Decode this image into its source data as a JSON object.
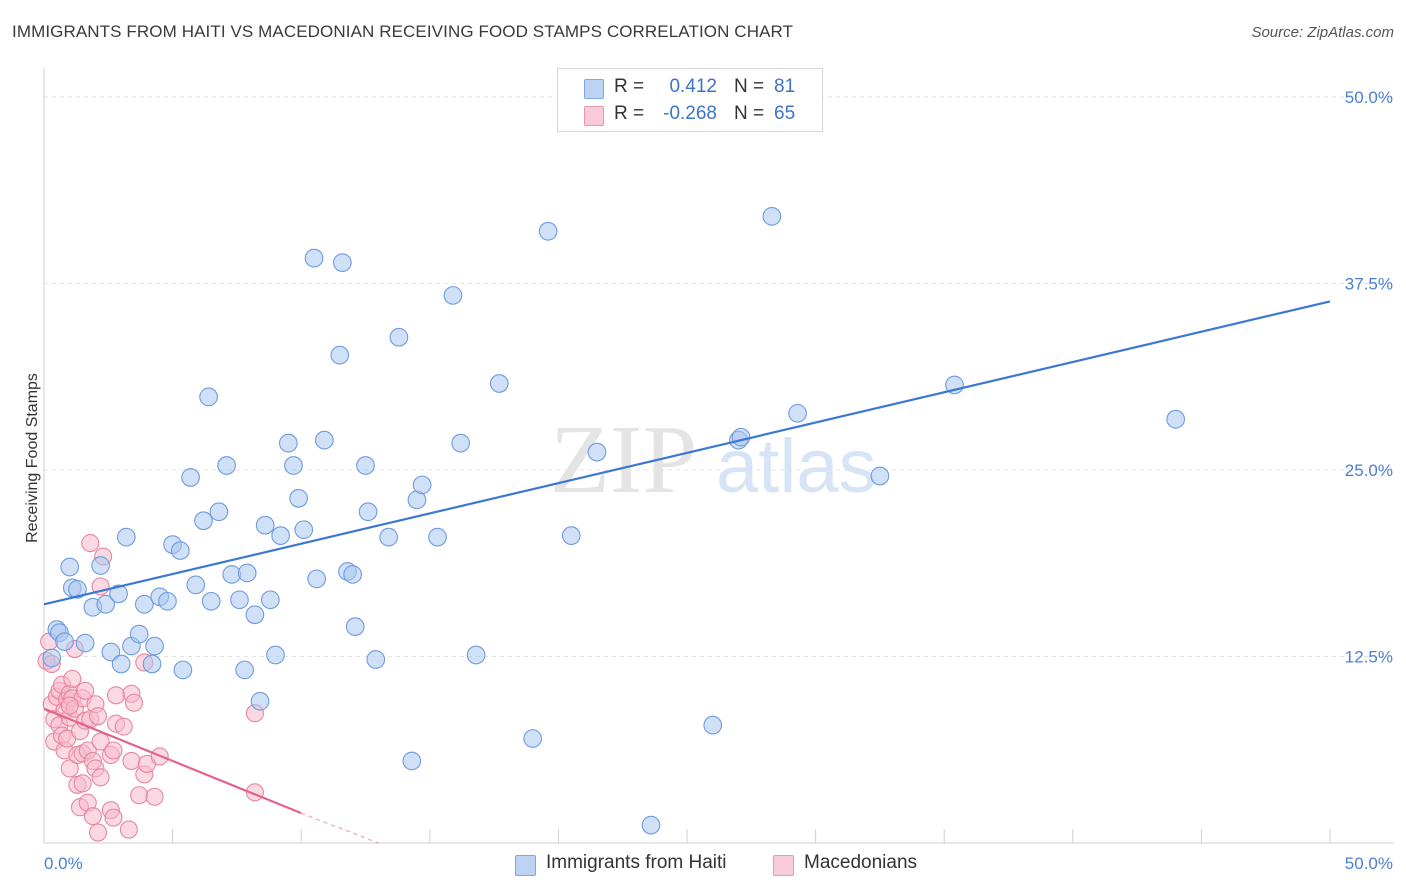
{
  "title": "IMMIGRANTS FROM HAITI VS MACEDONIAN RECEIVING FOOD STAMPS CORRELATION CHART",
  "source": "Source: ZipAtlas.com",
  "watermark": {
    "zip": "ZIP",
    "atlas": "atlas"
  },
  "legend": {
    "rows": [
      {
        "r_label": "R =",
        "r_value": "0.412",
        "n_label": "N =",
        "n_value": "81",
        "color": "#a9c6ef"
      },
      {
        "r_label": "R =",
        "r_value": "-0.268",
        "n_label": "N =",
        "n_value": "65",
        "color": "#f6b9cc"
      }
    ]
  },
  "chart_data": {
    "type": "scatter",
    "title": "IMMIGRANTS FROM HAITI VS MACEDONIAN RECEIVING FOOD STAMPS CORRELATION CHART",
    "xlabel": "",
    "ylabel": "Receiving Food Stamps",
    "xlim": [
      0,
      50
    ],
    "ylim": [
      0,
      50
    ],
    "x_tick_labels": [
      "0.0%",
      "50.0%"
    ],
    "y_ticks": [
      12.5,
      25.0,
      37.5,
      50.0
    ],
    "y_tick_labels": [
      "12.5%",
      "25.0%",
      "37.5%",
      "50.0%"
    ],
    "grid": true,
    "legend_position": "top-center",
    "series": [
      {
        "name": "Immigrants from Haiti",
        "color": "#a9c6ef",
        "edge": "#6f9be0",
        "trend": {
          "x": [
            0,
            50
          ],
          "y": [
            16.0,
            36.3
          ],
          "color": "#3b78d4"
        },
        "points": [
          [
            0.3,
            12.4
          ],
          [
            0.5,
            14.3
          ],
          [
            0.6,
            14.1
          ],
          [
            0.8,
            13.5
          ],
          [
            1.0,
            18.5
          ],
          [
            1.1,
            17.1
          ],
          [
            1.3,
            17.0
          ],
          [
            1.6,
            13.4
          ],
          [
            1.9,
            15.8
          ],
          [
            2.2,
            18.6
          ],
          [
            2.4,
            16.0
          ],
          [
            2.6,
            12.8
          ],
          [
            2.9,
            16.7
          ],
          [
            3.0,
            12.0
          ],
          [
            3.2,
            20.5
          ],
          [
            3.4,
            13.2
          ],
          [
            3.7,
            14.0
          ],
          [
            3.9,
            16.0
          ],
          [
            4.2,
            12.0
          ],
          [
            4.3,
            13.2
          ],
          [
            4.5,
            16.5
          ],
          [
            4.8,
            16.2
          ],
          [
            5.0,
            20.0
          ],
          [
            5.3,
            19.6
          ],
          [
            5.4,
            11.6
          ],
          [
            5.7,
            24.5
          ],
          [
            5.9,
            17.3
          ],
          [
            6.2,
            21.6
          ],
          [
            6.4,
            29.9
          ],
          [
            6.5,
            16.2
          ],
          [
            6.8,
            22.2
          ],
          [
            7.1,
            25.3
          ],
          [
            7.3,
            18.0
          ],
          [
            7.6,
            16.3
          ],
          [
            7.8,
            11.6
          ],
          [
            7.9,
            18.1
          ],
          [
            8.2,
            15.3
          ],
          [
            8.4,
            9.5
          ],
          [
            8.6,
            21.3
          ],
          [
            8.8,
            16.3
          ],
          [
            9.0,
            12.6
          ],
          [
            9.2,
            20.6
          ],
          [
            9.5,
            26.8
          ],
          [
            9.7,
            25.3
          ],
          [
            9.9,
            23.1
          ],
          [
            10.1,
            21.0
          ],
          [
            10.5,
            39.2
          ],
          [
            10.6,
            17.7
          ],
          [
            10.9,
            27.0
          ],
          [
            11.5,
            32.7
          ],
          [
            11.6,
            38.9
          ],
          [
            11.8,
            18.2
          ],
          [
            12.0,
            18.0
          ],
          [
            12.1,
            14.5
          ],
          [
            12.5,
            25.3
          ],
          [
            12.6,
            22.2
          ],
          [
            12.9,
            12.3
          ],
          [
            13.4,
            20.5
          ],
          [
            13.8,
            33.9
          ],
          [
            14.3,
            5.5
          ],
          [
            14.5,
            23.0
          ],
          [
            14.7,
            24.0
          ],
          [
            15.3,
            20.5
          ],
          [
            15.9,
            36.7
          ],
          [
            16.2,
            26.8
          ],
          [
            16.8,
            12.6
          ],
          [
            17.7,
            30.8
          ],
          [
            19.0,
            7.0
          ],
          [
            19.6,
            41.0
          ],
          [
            20.5,
            20.6
          ],
          [
            20.6,
            48.8
          ],
          [
            21.5,
            26.2
          ],
          [
            23.6,
            1.2
          ],
          [
            26.0,
            7.9
          ],
          [
            27.0,
            27.0
          ],
          [
            27.1,
            27.2
          ],
          [
            28.3,
            42.0
          ],
          [
            29.3,
            28.8
          ],
          [
            32.5,
            24.6
          ],
          [
            35.4,
            30.7
          ],
          [
            44.0,
            28.4
          ]
        ]
      },
      {
        "name": "Macedonians",
        "color": "#f6b9cc",
        "edge": "#e8869f",
        "trend": {
          "x": [
            0,
            10
          ],
          "y": [
            9.0,
            2.0
          ],
          "color": "#e2638b",
          "dashed_extension_to": [
            13,
            0
          ]
        },
        "points": [
          [
            0.1,
            12.2
          ],
          [
            0.2,
            13.5
          ],
          [
            0.3,
            12.0
          ],
          [
            0.3,
            9.3
          ],
          [
            0.4,
            8.3
          ],
          [
            0.4,
            6.8
          ],
          [
            0.5,
            9.8
          ],
          [
            0.6,
            10.2
          ],
          [
            0.6,
            7.9
          ],
          [
            0.7,
            7.2
          ],
          [
            0.7,
            10.6
          ],
          [
            0.8,
            8.9
          ],
          [
            0.8,
            6.2
          ],
          [
            0.9,
            9.6
          ],
          [
            0.9,
            7.0
          ],
          [
            1.0,
            10.0
          ],
          [
            1.0,
            8.4
          ],
          [
            1.0,
            5.0
          ],
          [
            1.1,
            9.7
          ],
          [
            1.1,
            11.0
          ],
          [
            1.2,
            9.0
          ],
          [
            1.2,
            13.0
          ],
          [
            1.3,
            3.9
          ],
          [
            1.3,
            5.9
          ],
          [
            1.4,
            7.5
          ],
          [
            1.4,
            2.4
          ],
          [
            1.5,
            9.7
          ],
          [
            1.5,
            6.0
          ],
          [
            1.5,
            4.0
          ],
          [
            1.6,
            8.2
          ],
          [
            1.6,
            10.2
          ],
          [
            1.7,
            2.7
          ],
          [
            1.7,
            6.2
          ],
          [
            1.8,
            20.1
          ],
          [
            1.8,
            8.3
          ],
          [
            1.9,
            1.8
          ],
          [
            1.9,
            5.5
          ],
          [
            2.0,
            9.3
          ],
          [
            2.0,
            5.0
          ],
          [
            2.1,
            0.7
          ],
          [
            2.1,
            8.5
          ],
          [
            2.2,
            4.4
          ],
          [
            2.2,
            6.8
          ],
          [
            2.2,
            17.2
          ],
          [
            2.3,
            19.2
          ],
          [
            2.6,
            5.9
          ],
          [
            2.6,
            2.2
          ],
          [
            2.7,
            6.2
          ],
          [
            2.7,
            1.7
          ],
          [
            2.8,
            8.0
          ],
          [
            2.8,
            9.9
          ],
          [
            3.1,
            7.8
          ],
          [
            3.3,
            0.9
          ],
          [
            3.4,
            10.0
          ],
          [
            3.4,
            5.5
          ],
          [
            3.5,
            9.4
          ],
          [
            3.7,
            3.2
          ],
          [
            3.9,
            4.6
          ],
          [
            3.9,
            12.1
          ],
          [
            4.0,
            5.3
          ],
          [
            4.3,
            3.1
          ],
          [
            4.5,
            5.8
          ],
          [
            8.2,
            8.7
          ],
          [
            8.2,
            3.4
          ],
          [
            1.0,
            9.2
          ]
        ]
      }
    ]
  },
  "bottom_legend": [
    "Immigrants from Haiti",
    "Macedonians"
  ]
}
